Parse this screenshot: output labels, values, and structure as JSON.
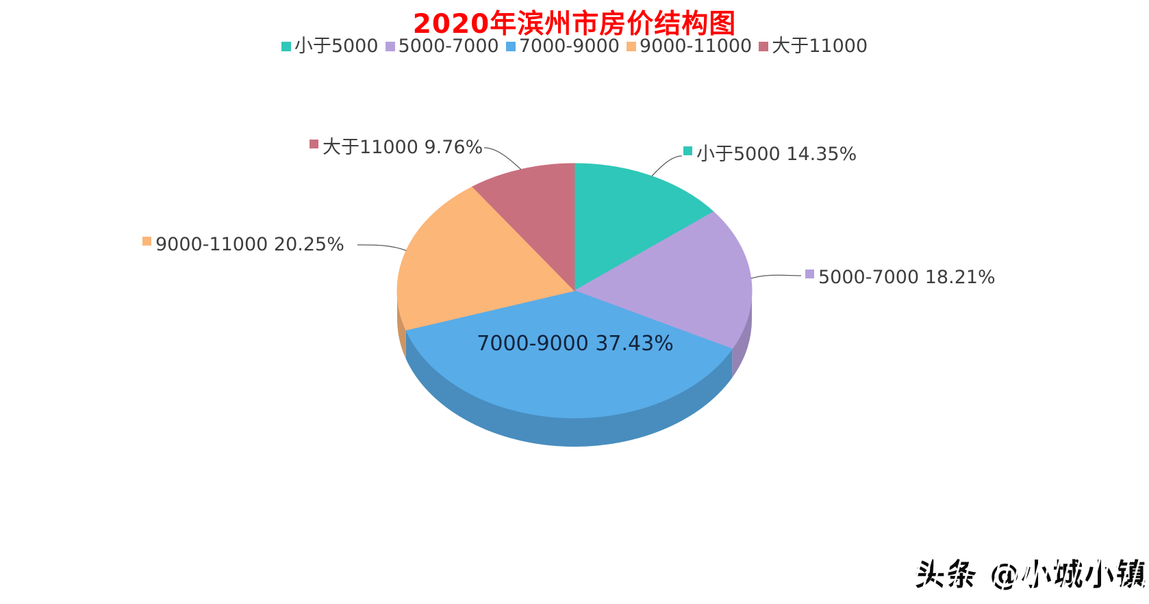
{
  "title": {
    "text": "2020年滨州市房价结构图",
    "color": "#FF0000"
  },
  "watermark": {
    "text": "头条 @小城小镇"
  },
  "chart_data": {
    "type": "pie",
    "style": "3d-pie",
    "title": "2020年滨州市房价结构图",
    "unit": "%",
    "start_angle_deg": 0,
    "direction": "clockwise",
    "legend_position": "top",
    "background": "#ffffff",
    "leader_line_color": "#595959",
    "inside_label_color": "#12233b",
    "series": [
      {
        "name": "小于5000",
        "value": 14.35,
        "color": "#2FC7B9",
        "label": "小于5000 14.35%",
        "label_position": "outside"
      },
      {
        "name": "5000-7000",
        "value": 18.21,
        "color": "#B5A0DC",
        "label": "5000-7000 18.21%",
        "label_position": "outside"
      },
      {
        "name": "7000-9000",
        "value": 37.43,
        "color": "#58ACE8",
        "label": "7000-9000 37.43%",
        "label_position": "inside"
      },
      {
        "name": "9000-11000",
        "value": 20.25,
        "color": "#FBB678",
        "label": "9000-11000 20.25%",
        "label_position": "outside"
      },
      {
        "name": "大于11000",
        "value": 9.76,
        "color": "#C9707F",
        "label": "大于11000 9.76%",
        "label_position": "outside"
      }
    ]
  }
}
